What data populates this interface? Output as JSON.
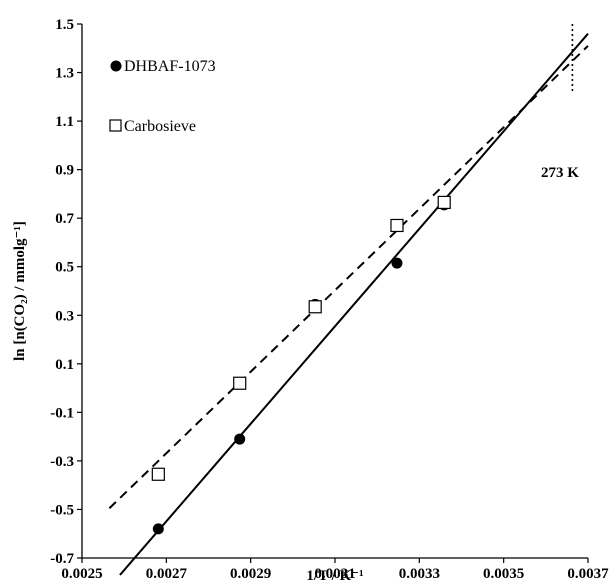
{
  "chart_data": {
    "type": "scatter",
    "title": "",
    "xlabel": "1/T / K⁻¹",
    "ylabel": "ln [n(CO₂) / mmolg⁻¹]",
    "xlim": [
      0.0025,
      0.0037
    ],
    "ylim": [
      -0.7,
      1.5
    ],
    "xticks": [
      "0.0025",
      "0.0027",
      "0.0029",
      "0.0031",
      "0.0033",
      "0.0035",
      "0.0037"
    ],
    "yticks": [
      "-0.7",
      "-0.5",
      "-0.3",
      "-0.1",
      "0.1",
      "0.3",
      "0.5",
      "0.7",
      "0.9",
      "1.1",
      "1.3",
      "1.5"
    ],
    "grid": false,
    "legend_position": "top-left",
    "series": [
      {
        "name": "DHBAF-1073",
        "marker": "filled-circle",
        "x": [
          0.002681,
          0.002874,
          0.003053,
          0.003247,
          0.003359
        ],
        "y": [
          -0.58,
          -0.21,
          0.345,
          0.515,
          0.755
        ],
        "fit_line": {
          "style": "solid",
          "x": [
            0.00259,
            0.0037
          ],
          "y": [
            -0.77,
            1.46
          ]
        }
      },
      {
        "name": "Carbosieve",
        "marker": "open-square",
        "x": [
          0.002681,
          0.002874,
          0.003053,
          0.003247,
          0.003359
        ],
        "y": [
          -0.355,
          0.02,
          0.335,
          0.67,
          0.765
        ],
        "fit_line": {
          "style": "dashed",
          "x": [
            0.002565,
            0.0037
          ],
          "y": [
            -0.495,
            1.41
          ]
        }
      }
    ],
    "annotations": [
      {
        "text": "273 K",
        "x_marker": 0.003663,
        "style": "dotted-vertical"
      }
    ]
  }
}
